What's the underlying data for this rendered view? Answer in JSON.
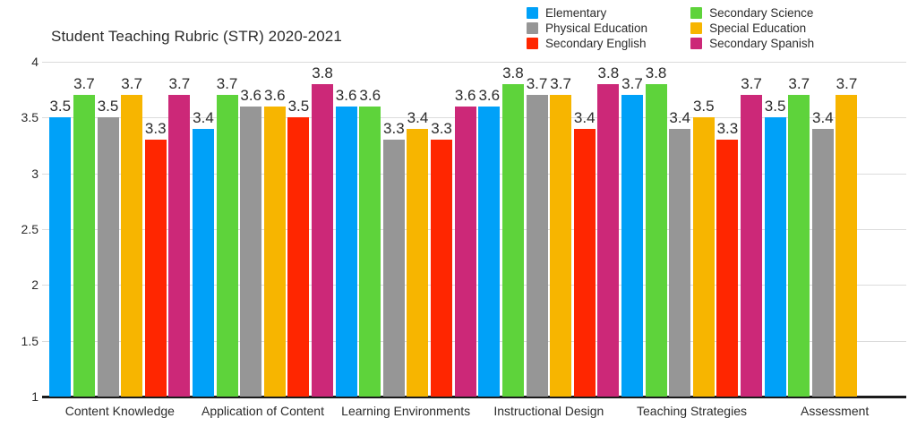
{
  "title": "Student Teaching Rubric (STR) 2020-2021",
  "chart_data": {
    "type": "bar",
    "title": "Student Teaching Rubric (STR) 2020-2021",
    "categories": [
      "Content Knowledge",
      "Application of Content",
      "Learning Environments",
      "Instructional Design",
      "Teaching Strategies",
      "Assessment"
    ],
    "series": [
      {
        "name": "Elementary",
        "color": "#00A1F8",
        "values": [
          3.5,
          3.4,
          3.6,
          3.6,
          3.7,
          3.5
        ]
      },
      {
        "name": "Secondary Science",
        "color": "#5ED33B",
        "values": [
          3.7,
          3.7,
          3.6,
          3.8,
          3.8,
          3.7
        ]
      },
      {
        "name": "Physical Education",
        "color": "#969696",
        "values": [
          3.5,
          3.6,
          3.3,
          3.7,
          3.4,
          3.4
        ]
      },
      {
        "name": "Special Education",
        "color": "#F7B500",
        "values": [
          3.7,
          3.6,
          3.4,
          3.7,
          3.5,
          3.7
        ]
      },
      {
        "name": "Secondary English",
        "color": "#FF2600",
        "values": [
          3.3,
          3.5,
          3.3,
          3.4,
          3.3,
          null
        ]
      },
      {
        "name": "Secondary Spanish",
        "color": "#CC2878",
        "values": [
          3.7,
          3.8,
          3.6,
          3.8,
          3.7,
          null
        ]
      }
    ],
    "legend": {
      "position": "top-right",
      "columns": [
        [
          0,
          2,
          4
        ],
        [
          1,
          3,
          5
        ]
      ]
    },
    "y_axis": {
      "min": 1,
      "max": 4,
      "step": 0.5,
      "tick_labels": [
        "4",
        "3.5",
        "3",
        "2.5",
        "2",
        "1.5",
        "1"
      ]
    },
    "grid": true,
    "value_labels": true,
    "colors": {
      "gridline": "#dbdbdb",
      "axis": "#1a1a1a",
      "text": "#2b2b2b"
    }
  }
}
